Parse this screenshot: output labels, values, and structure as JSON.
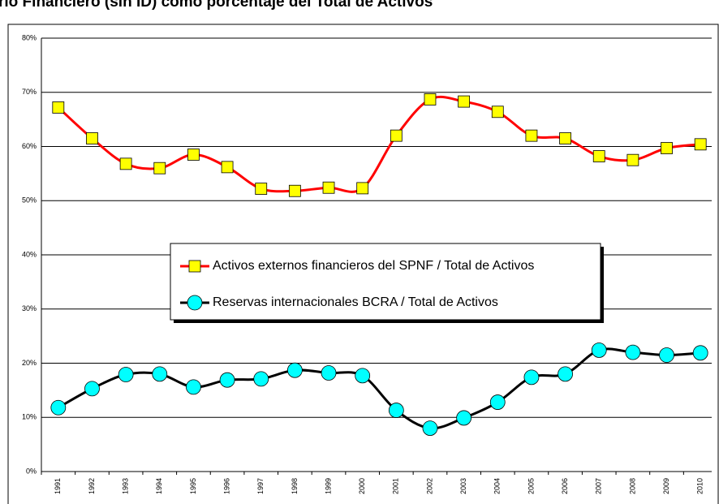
{
  "chart_data": {
    "type": "line",
    "title": "rio Financiero (sin ID) como porcentaje del Total de Activos",
    "categories": [
      "1991",
      "1992",
      "1993",
      "1994",
      "1995",
      "1996",
      "1997",
      "1998",
      "1999",
      "2000",
      "2001",
      "2002",
      "2003",
      "2004",
      "2005",
      "2006",
      "2007",
      "2008",
      "2009",
      "2010"
    ],
    "series": [
      {
        "name": "Activos externos financieros del SPNF / Total de Activos",
        "color": "#ff0000",
        "marker_color": "#ffff00",
        "marker": "square",
        "values": [
          67.2,
          61.5,
          56.8,
          56.0,
          58.5,
          56.2,
          52.2,
          51.8,
          52.4,
          52.3,
          62.0,
          68.7,
          68.3,
          66.4,
          62.0,
          61.5,
          58.2,
          57.5,
          59.7,
          60.4
        ]
      },
      {
        "name": "Reservas internacionales BCRA / Total de Activos",
        "color": "#000000",
        "marker_color": "#00ffff",
        "marker": "circle",
        "values": [
          11.8,
          15.3,
          17.9,
          18.0,
          15.6,
          16.9,
          17.1,
          18.7,
          18.2,
          17.7,
          11.3,
          8.0,
          9.9,
          12.8,
          17.4,
          18.0,
          22.4,
          22.0,
          21.5,
          21.9
        ]
      }
    ],
    "ylim": [
      0,
      80
    ],
    "yticks": [
      {
        "value": 0,
        "label": "0%"
      },
      {
        "value": 10,
        "label": "10%"
      },
      {
        "value": 20,
        "label": "20%"
      },
      {
        "value": 30,
        "label": "30%"
      },
      {
        "value": 40,
        "label": "40%"
      },
      {
        "value": 50,
        "label": "50%"
      },
      {
        "value": 60,
        "label": "60%"
      },
      {
        "value": 70,
        "label": "70%"
      },
      {
        "value": 80,
        "label": "80%"
      }
    ],
    "grid": true
  }
}
